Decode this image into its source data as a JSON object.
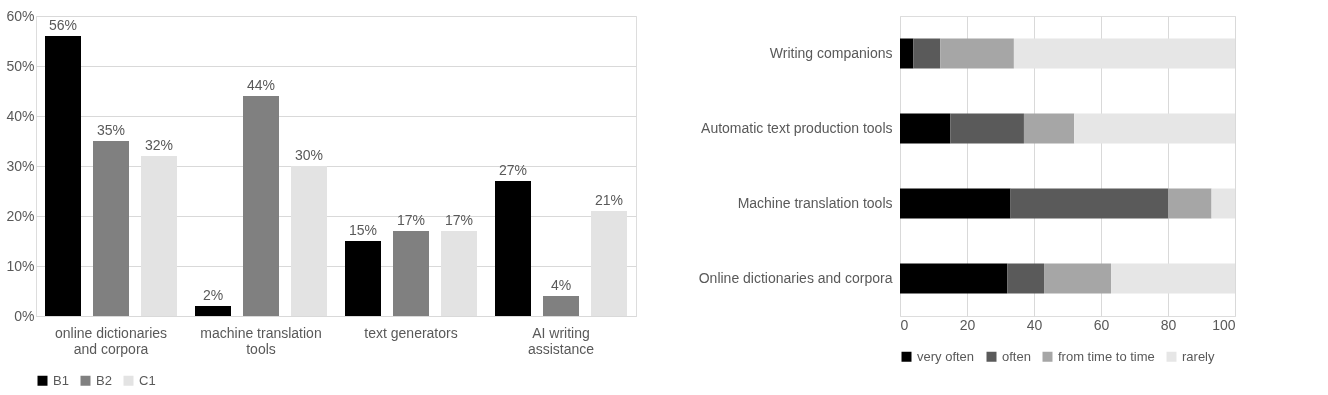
{
  "chart_data": [
    {
      "type": "bar",
      "categories": [
        "online dictionaries and corpora",
        "machine translation tools",
        "text generators",
        "AI writing assistance"
      ],
      "series": [
        {
          "name": "B1",
          "color": "#000000",
          "values": [
            56,
            2,
            15,
            27
          ],
          "value_labels": [
            "56%",
            "2%",
            "15%",
            "27%"
          ]
        },
        {
          "name": "B2",
          "color": "#808080",
          "values": [
            35,
            44,
            17,
            4
          ],
          "value_labels": [
            "35%",
            "44%",
            "17%",
            "4%"
          ]
        },
        {
          "name": "C1",
          "color": "#e3e3e3",
          "values": [
            32,
            30,
            17,
            21
          ],
          "value_labels": [
            "32%",
            "30%",
            "17%",
            "21%"
          ]
        }
      ],
      "ylim": [
        0,
        60
      ],
      "yticks": [
        {
          "value": 0,
          "label": "0%"
        },
        {
          "value": 10,
          "label": "10%"
        },
        {
          "value": 20,
          "label": "20%"
        },
        {
          "value": 30,
          "label": "30%"
        },
        {
          "value": 40,
          "label": "40%"
        },
        {
          "value": 50,
          "label": "50%"
        },
        {
          "value": 60,
          "label": "60%"
        }
      ],
      "grid": "y",
      "legend": "bottom"
    },
    {
      "type": "bar",
      "orientation": "horizontal",
      "stacked": true,
      "categories": [
        "Writing companions",
        "Automatic text production tools",
        "Machine translation tools",
        "Online dictionaries and corpora"
      ],
      "series": [
        {
          "name": "very often",
          "color": "#000000",
          "values": [
            4,
            15,
            33,
            32
          ]
        },
        {
          "name": "often",
          "color": "#5a5a5a",
          "values": [
            8,
            22,
            47,
            11
          ]
        },
        {
          "name": "from time to time",
          "color": "#a6a6a6",
          "values": [
            22,
            15,
            13,
            20
          ]
        },
        {
          "name": "rarely",
          "color": "#e6e6e6",
          "values": [
            66,
            48,
            7,
            37
          ]
        }
      ],
      "xlim": [
        0,
        100
      ],
      "xticks": [
        0,
        20,
        40,
        60,
        80,
        100
      ],
      "grid": "x",
      "legend": "bottom"
    }
  ]
}
